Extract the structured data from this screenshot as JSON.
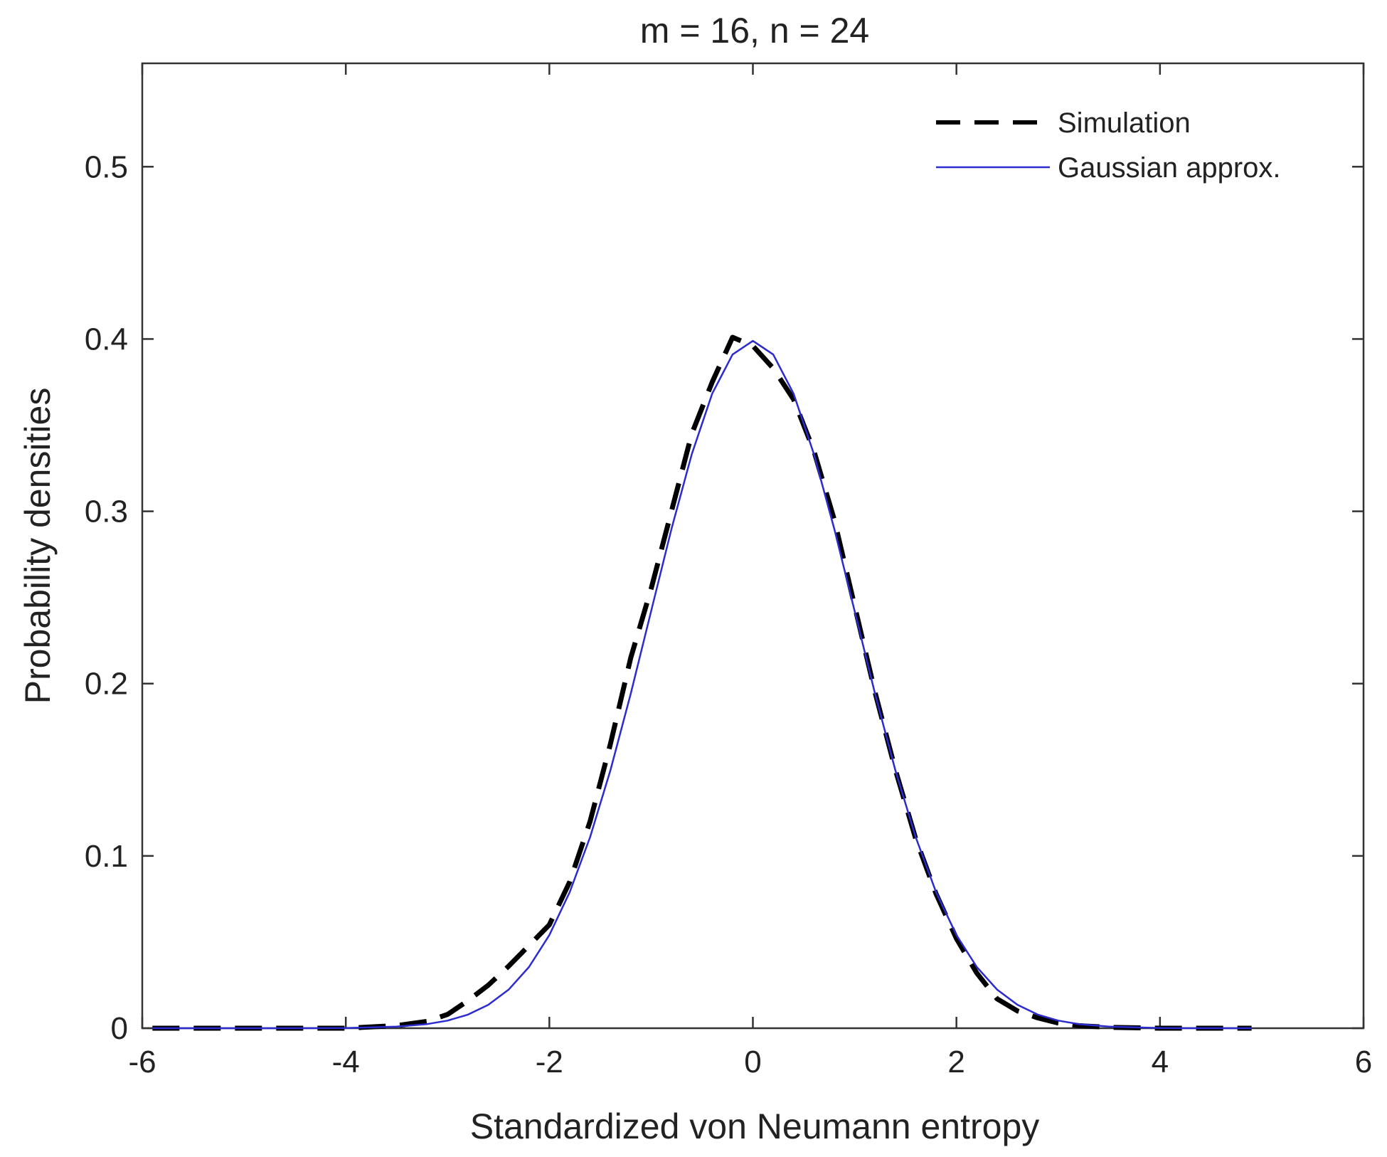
{
  "chart_data": {
    "type": "line",
    "title": "m = 16, n = 24",
    "xlabel": "Standardized von Neumann entropy",
    "ylabel": "Probability densities",
    "xlim": [
      -6,
      6
    ],
    "ylim": [
      0,
      0.56
    ],
    "xticks": [
      -6,
      -4,
      -2,
      0,
      2,
      4,
      6
    ],
    "xtick_labels": [
      "-6",
      "-4",
      "-2",
      "0",
      "2",
      "4",
      "6"
    ],
    "yticks": [
      0,
      0.1,
      0.2,
      0.3,
      0.4,
      0.5
    ],
    "ytick_labels": [
      "0",
      "0.1",
      "0.2",
      "0.3",
      "0.4",
      "0.5"
    ],
    "grid": false,
    "legend_position": "top-right",
    "series": [
      {
        "name": "Simulation",
        "style": "dashed",
        "color": "#000000",
        "x": [
          -5.9,
          -5.0,
          -4.0,
          -3.5,
          -3.2,
          -3.0,
          -2.8,
          -2.6,
          -2.4,
          -2.2,
          -2.0,
          -1.8,
          -1.6,
          -1.4,
          -1.2,
          -1.0,
          -0.8,
          -0.6,
          -0.4,
          -0.2,
          0.0,
          0.2,
          0.4,
          0.6,
          0.8,
          1.0,
          1.2,
          1.4,
          1.6,
          1.8,
          2.0,
          2.2,
          2.4,
          2.6,
          2.8,
          3.0,
          3.2,
          3.5,
          4.0,
          4.9
        ],
        "y": [
          0.0,
          0.0,
          0.0,
          0.0015,
          0.004,
          0.008,
          0.016,
          0.025,
          0.036,
          0.048,
          0.06,
          0.085,
          0.12,
          0.165,
          0.215,
          0.255,
          0.3,
          0.345,
          0.375,
          0.401,
          0.396,
          0.383,
          0.365,
          0.335,
          0.295,
          0.245,
          0.195,
          0.15,
          0.11,
          0.078,
          0.052,
          0.032,
          0.017,
          0.01,
          0.006,
          0.003,
          0.0015,
          0.0005,
          0.0,
          0.0
        ]
      },
      {
        "name": "Gaussian approx.",
        "style": "solid",
        "color": "#2b2bcf",
        "x": [
          -5.9,
          -5.0,
          -4.0,
          -3.5,
          -3.2,
          -3.0,
          -2.8,
          -2.6,
          -2.4,
          -2.2,
          -2.0,
          -1.8,
          -1.6,
          -1.4,
          -1.2,
          -1.0,
          -0.8,
          -0.6,
          -0.4,
          -0.2,
          0.0,
          0.2,
          0.4,
          0.6,
          0.8,
          1.0,
          1.2,
          1.4,
          1.6,
          1.8,
          2.0,
          2.2,
          2.4,
          2.6,
          2.8,
          3.0,
          3.2,
          3.5,
          4.0,
          4.9
        ],
        "y": [
          0.0,
          0.0,
          0.0001,
          0.0009,
          0.0024,
          0.0044,
          0.0079,
          0.0136,
          0.0224,
          0.0355,
          0.054,
          0.079,
          0.1109,
          0.1497,
          0.1942,
          0.242,
          0.2897,
          0.3332,
          0.3683,
          0.391,
          0.3989,
          0.391,
          0.3683,
          0.3332,
          0.2897,
          0.242,
          0.1942,
          0.1497,
          0.1109,
          0.079,
          0.054,
          0.0355,
          0.0224,
          0.0136,
          0.0079,
          0.0044,
          0.0024,
          0.0009,
          0.0001,
          0.0
        ]
      }
    ]
  }
}
